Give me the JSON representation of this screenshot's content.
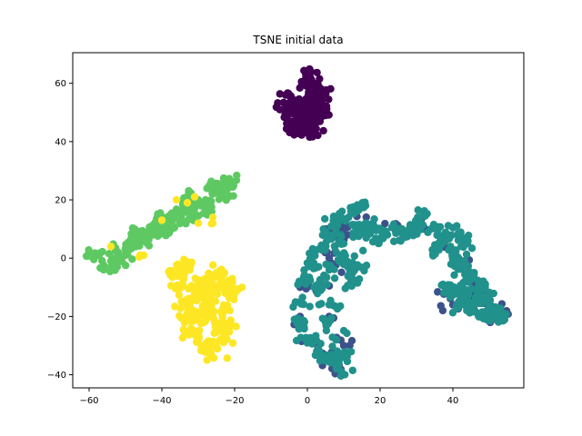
{
  "chart_data": {
    "type": "scatter",
    "title": "TSNE initial data",
    "xlabel": "",
    "ylabel": "",
    "xlim": [
      -64.5,
      59.5
    ],
    "ylim": [
      -44.5,
      70.5
    ],
    "xticks": [
      -60,
      -40,
      -20,
      0,
      20,
      40
    ],
    "yticks": [
      -40,
      -20,
      0,
      20,
      40,
      60
    ],
    "grid": false,
    "legend": "none",
    "clusters": [
      {
        "color": "#440154",
        "description": "purple",
        "anchors": [
          [
            -6,
            56
          ],
          [
            -6,
            50
          ],
          [
            -4,
            47
          ],
          [
            -3,
            45
          ],
          [
            -2,
            44
          ],
          [
            0,
            43
          ],
          [
            1,
            45
          ],
          [
            -1,
            50
          ],
          [
            0,
            55
          ],
          [
            0,
            60
          ],
          [
            1,
            64
          ],
          [
            1,
            60
          ],
          [
            2,
            55
          ],
          [
            2,
            50
          ],
          [
            3,
            48
          ],
          [
            4,
            50
          ],
          [
            4,
            54
          ],
          [
            3,
            58
          ],
          [
            -2,
            52
          ],
          [
            -4,
            53
          ],
          [
            -1,
            48
          ],
          [
            2,
            46
          ],
          [
            3,
            52
          ],
          [
            0,
            52
          ]
        ],
        "n": 240,
        "spread": 1.3
      },
      {
        "color": "#3b528b",
        "description": "blue (underneath teal)",
        "anchors": [
          [
            -2,
            -10
          ],
          [
            -2,
            -20
          ],
          [
            0,
            -28
          ],
          [
            4,
            -35
          ],
          [
            8,
            -37
          ],
          [
            10,
            -30
          ],
          [
            6,
            -20
          ],
          [
            4,
            -10
          ],
          [
            6,
            0
          ],
          [
            10,
            8
          ],
          [
            16,
            12
          ],
          [
            24,
            10
          ],
          [
            32,
            10
          ],
          [
            38,
            6
          ],
          [
            42,
            -2
          ],
          [
            46,
            -10
          ],
          [
            50,
            -15
          ],
          [
            53,
            -20
          ],
          [
            48,
            -20
          ],
          [
            44,
            -14
          ],
          [
            38,
            -10
          ],
          [
            40,
            -16
          ],
          [
            12,
            -2
          ],
          [
            8,
            10
          ]
        ],
        "n": 140,
        "spread": 1.6
      },
      {
        "color": "#21918c",
        "description": "teal",
        "anchors": [
          [
            -2,
            -15
          ],
          [
            -1,
            -8
          ],
          [
            1,
            -2
          ],
          [
            3,
            3
          ],
          [
            6,
            8
          ],
          [
            9,
            13
          ],
          [
            12,
            16
          ],
          [
            16,
            18
          ],
          [
            18,
            12
          ],
          [
            16,
            8
          ],
          [
            20,
            10
          ],
          [
            26,
            10
          ],
          [
            30,
            12
          ],
          [
            32,
            15
          ],
          [
            34,
            10
          ],
          [
            38,
            8
          ],
          [
            42,
            8
          ],
          [
            44,
            5
          ],
          [
            40,
            2
          ],
          [
            42,
            -2
          ],
          [
            44,
            -6
          ],
          [
            48,
            -10
          ],
          [
            50,
            -14
          ],
          [
            52,
            -18
          ],
          [
            50,
            -20
          ],
          [
            46,
            -18
          ],
          [
            42,
            -16
          ],
          [
            40,
            -12
          ],
          [
            38,
            -10
          ],
          [
            44,
            -12
          ],
          [
            -2,
            -22
          ],
          [
            0,
            -28
          ],
          [
            3,
            -31
          ],
          [
            6,
            -35
          ],
          [
            8,
            -38
          ],
          [
            10,
            -34
          ],
          [
            8,
            -28
          ],
          [
            5,
            -22
          ],
          [
            6,
            -16
          ],
          [
            4,
            -10
          ],
          [
            6,
            -4
          ],
          [
            8,
            2
          ],
          [
            11,
            -2
          ],
          [
            12,
            -8
          ],
          [
            14,
            -3
          ],
          [
            10,
            5
          ],
          [
            14,
            10
          ],
          [
            22,
            8
          ],
          [
            28,
            8
          ],
          [
            36,
            4
          ],
          [
            46,
            -16
          ],
          [
            48,
            -20
          ],
          [
            52,
            -20
          ]
        ],
        "n": 560,
        "spread": 1.4
      },
      {
        "color": "#5ec962",
        "description": "green",
        "anchors": [
          [
            -56,
            -4
          ],
          [
            -54,
            -1
          ],
          [
            -52,
            2
          ],
          [
            -50,
            3
          ],
          [
            -48,
            5
          ],
          [
            -46,
            7
          ],
          [
            -44,
            9
          ],
          [
            -42,
            10
          ],
          [
            -40,
            11
          ],
          [
            -38,
            12
          ],
          [
            -36,
            14
          ],
          [
            -34,
            16
          ],
          [
            -32,
            17
          ],
          [
            -30,
            19
          ],
          [
            -28,
            20
          ],
          [
            -26,
            22
          ],
          [
            -24,
            24
          ],
          [
            -22,
            25
          ],
          [
            -21,
            26
          ],
          [
            -23,
            22
          ],
          [
            -27,
            18
          ],
          [
            -31,
            15
          ],
          [
            -35,
            13
          ],
          [
            -40,
            9
          ],
          [
            -45,
            6
          ],
          [
            -50,
            1
          ],
          [
            -54,
            -3
          ],
          [
            -58,
            1
          ],
          [
            -47,
            9
          ],
          [
            -41,
            14
          ],
          [
            -33,
            20
          ],
          [
            -25,
            25
          ]
        ],
        "n": 300,
        "spread": 1.3
      },
      {
        "color": "#fde725",
        "description": "yellow",
        "anchors": [
          [
            -36,
            -5
          ],
          [
            -35,
            -10
          ],
          [
            -34,
            -15
          ],
          [
            -33,
            -20
          ],
          [
            -32,
            -25
          ],
          [
            -30,
            -28
          ],
          [
            -28,
            -32
          ],
          [
            -26,
            -34
          ],
          [
            -25,
            -30
          ],
          [
            -24,
            -25
          ],
          [
            -26,
            -20
          ],
          [
            -28,
            -15
          ],
          [
            -27,
            -10
          ],
          [
            -25,
            -5
          ],
          [
            -22,
            -8
          ],
          [
            -21,
            -12
          ],
          [
            -23,
            -18
          ],
          [
            -29,
            -8
          ],
          [
            -31,
            -12
          ],
          [
            -22,
            -23
          ],
          [
            -24,
            -28
          ],
          [
            -30,
            -20
          ],
          [
            -34,
            -2
          ]
        ],
        "n": 300,
        "spread": 1.5
      },
      {
        "color": "#fde725",
        "description": "yellow outliers",
        "anchors": [
          [
            -31,
            21
          ],
          [
            -33,
            19
          ],
          [
            -36,
            20
          ],
          [
            -26,
            14
          ],
          [
            -26,
            12
          ],
          [
            -30,
            12
          ],
          [
            -54,
            4
          ],
          [
            -45,
            1
          ],
          [
            -46,
            1
          ],
          [
            -40,
            13
          ]
        ],
        "n": 12,
        "spread": 0.4
      }
    ]
  }
}
